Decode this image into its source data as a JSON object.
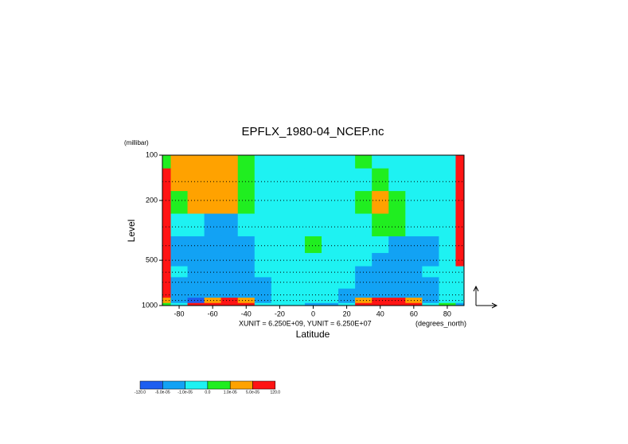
{
  "chart_data": {
    "type": "contour",
    "title": "EPFLX_1980-04_NCEP.nc",
    "y_units": "(millibar)",
    "ylabel": "Level",
    "xlabel": "Latitude",
    "vector_scale": "XUNIT = 6.250E+09, YUNIT = 6.250E+07",
    "x_units": "(degrees_north)",
    "x": [
      -90,
      -80,
      -70,
      -60,
      -50,
      -40,
      -30,
      -20,
      -10,
      0,
      10,
      20,
      30,
      40,
      50,
      60,
      70,
      80,
      90
    ],
    "levels": [
      100,
      150,
      200,
      300,
      400,
      500,
      600,
      700,
      850,
      925,
      1000
    ],
    "z": [
      [
        5e-06,
        3e-05,
        3e-05,
        3e-05,
        3e-05,
        5e-06,
        -5e-06,
        -5e-06,
        -5e-06,
        -5e-06,
        -5e-06,
        -5e-06,
        5e-06,
        -5e-06,
        -5e-06,
        -5e-06,
        -5e-06,
        -5e-06,
        0.0001
      ],
      [
        0.0001,
        3e-05,
        3e-05,
        3e-05,
        3e-05,
        5e-06,
        -5e-06,
        -5e-06,
        -5e-06,
        -5e-06,
        -5e-06,
        -5e-06,
        -5e-06,
        5e-06,
        -5e-06,
        -5e-06,
        -5e-06,
        -5e-06,
        0.0001
      ],
      [
        0.0001,
        5e-06,
        3e-05,
        3e-05,
        3e-05,
        5e-06,
        -5e-06,
        -5e-06,
        -5e-06,
        -5e-06,
        -5e-06,
        -5e-06,
        5e-06,
        3e-05,
        5e-06,
        -5e-06,
        -5e-06,
        -5e-06,
        0.0001
      ],
      [
        0.0001,
        -5e-06,
        -5e-06,
        -3e-05,
        -3e-05,
        -5e-06,
        -5e-06,
        -5e-06,
        -5e-06,
        -5e-06,
        -5e-06,
        -5e-06,
        -5e-06,
        5e-06,
        5e-06,
        -5e-06,
        -5e-06,
        -5e-06,
        0.0001
      ],
      [
        0.0001,
        -3e-05,
        -3e-05,
        -3e-05,
        -3e-05,
        -3e-05,
        -5e-06,
        -5e-06,
        -5e-06,
        5e-06,
        -5e-06,
        -5e-06,
        -5e-06,
        -5e-06,
        -3e-05,
        -3e-05,
        -3e-05,
        -5e-06,
        0.0001
      ],
      [
        0.0001,
        -3e-05,
        -3e-05,
        -3e-05,
        -3e-05,
        -3e-05,
        -5e-06,
        -5e-06,
        -5e-06,
        -5e-06,
        -5e-06,
        -5e-06,
        -5e-06,
        -3e-05,
        -3e-05,
        -3e-05,
        -3e-05,
        -5e-06,
        0.0001
      ],
      [
        0.0001,
        -5e-06,
        -3e-05,
        -3e-05,
        -3e-05,
        -3e-05,
        -5e-06,
        -5e-06,
        -5e-06,
        -5e-06,
        -5e-06,
        -5e-06,
        -3e-05,
        -3e-05,
        -3e-05,
        -3e-05,
        -5e-06,
        -5e-06,
        -5e-06
      ],
      [
        0.0001,
        -3e-05,
        -3e-05,
        -3e-05,
        -3e-05,
        -3e-05,
        -3e-05,
        -5e-06,
        -5e-06,
        -5e-06,
        -5e-06,
        -5e-06,
        -3e-05,
        -3e-05,
        -3e-05,
        -3e-05,
        -3e-05,
        -5e-06,
        -5e-06
      ],
      [
        0.0001,
        -3e-05,
        -3e-05,
        -3e-05,
        -3e-05,
        -3e-05,
        -3e-05,
        -5e-06,
        -5e-06,
        -5e-06,
        -5e-06,
        -3e-05,
        -3e-05,
        -3e-05,
        -3e-05,
        -3e-05,
        -3e-05,
        -5e-06,
        -5e-06
      ],
      [
        3e-05,
        -3e-05,
        -0.0001,
        3e-05,
        0.0001,
        3e-05,
        -3e-05,
        -5e-06,
        -5e-06,
        -5e-06,
        -5e-06,
        -3e-05,
        3e-05,
        0.0001,
        0.0001,
        3e-05,
        -3e-05,
        -5e-06,
        -5e-06
      ],
      [
        5e-06,
        -5e-06,
        0.0001,
        0.0001,
        0.0001,
        0.0001,
        -5e-06,
        -5e-06,
        -5e-06,
        -3e-05,
        -3e-05,
        -5e-06,
        0.0001,
        0.0001,
        0.0001,
        0.0001,
        -5e-06,
        5e-06,
        -3e-05
      ]
    ],
    "xlim": [
      -90,
      90
    ],
    "ylim": [
      100,
      1000
    ],
    "ylog": true,
    "grid": true,
    "xticks": [
      -80,
      -60,
      -40,
      -20,
      0,
      20,
      40,
      60,
      80
    ],
    "yticks": [
      100,
      200,
      500,
      1000
    ],
    "colorbar": {
      "bounds": [
        {
          "value": -120,
          "label": "-120.0"
        },
        {
          "value": -5e-05,
          "label": "-5.0e-05"
        },
        {
          "value": -1e-05,
          "label": "-1.0e-05"
        },
        {
          "value": 0,
          "label": "0.0"
        },
        {
          "value": 1e-05,
          "label": "1.0e-05"
        },
        {
          "value": 5e-05,
          "label": "5.0e-05"
        },
        {
          "value": 120,
          "label": "120.0"
        }
      ],
      "colors": [
        "#1e5ef0",
        "#12a2f4",
        "#1ef2f2",
        "#20ee20",
        "#ffa200",
        "#ff1414"
      ]
    }
  }
}
